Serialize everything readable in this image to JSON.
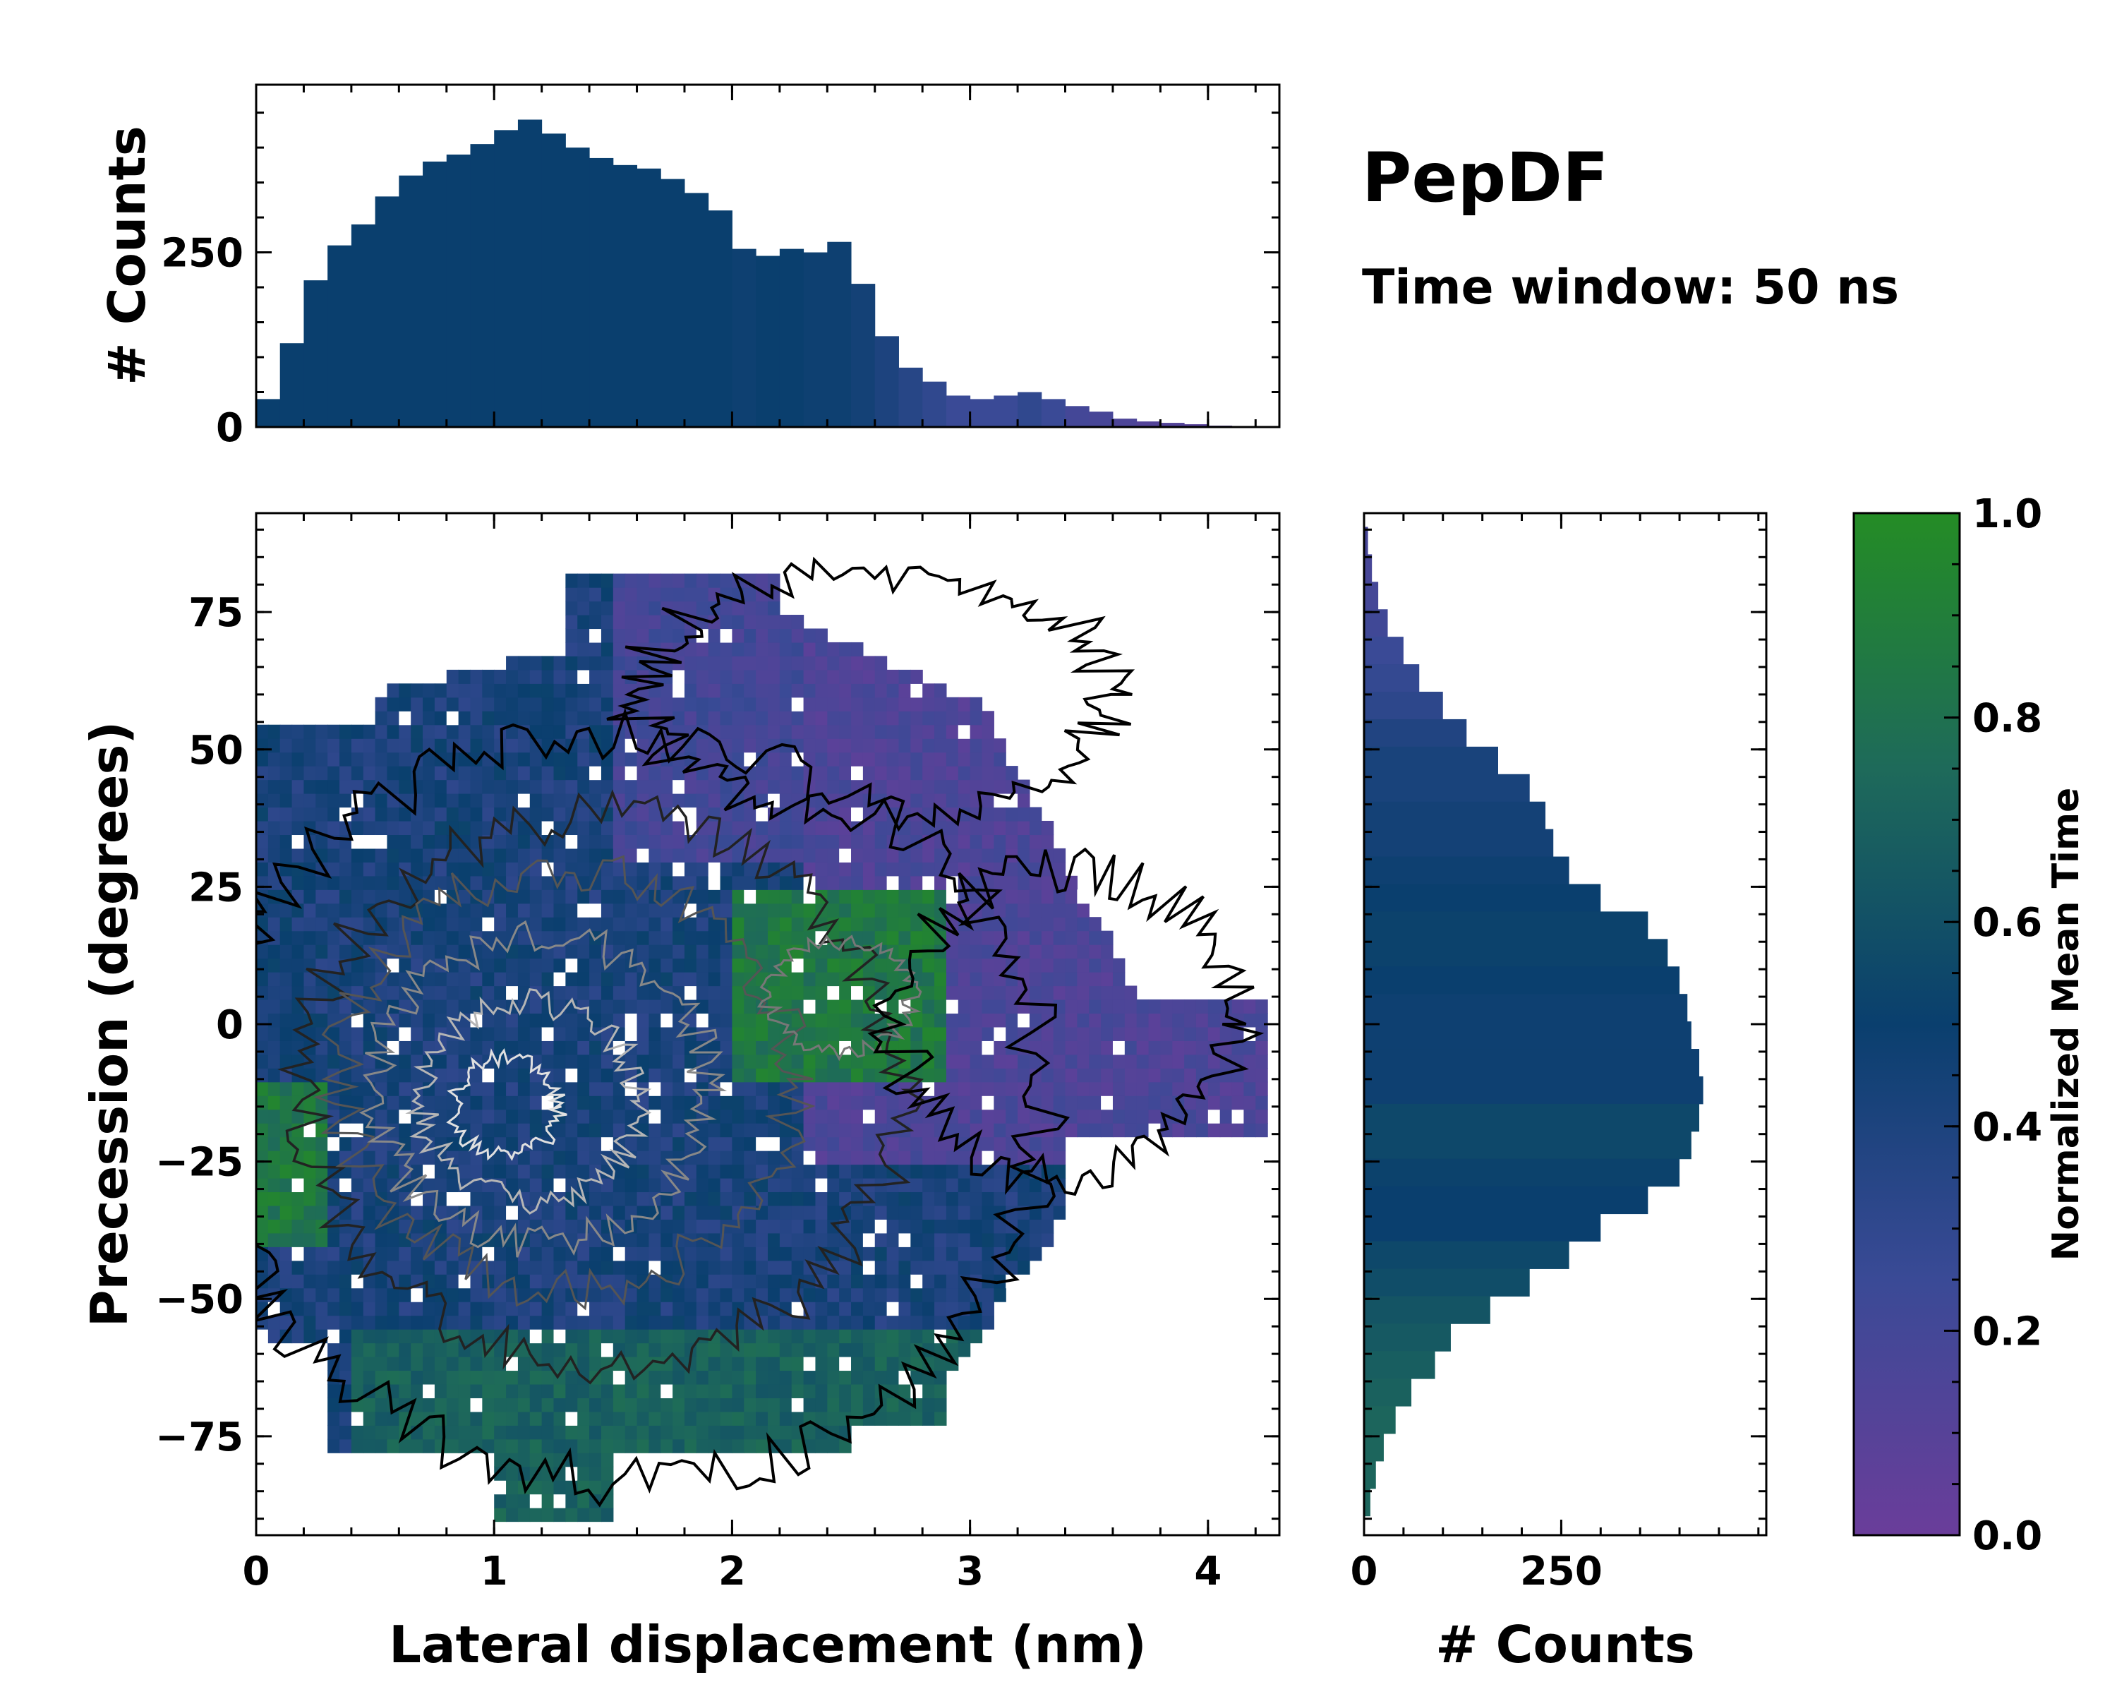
{
  "chart_data": [
    {
      "id": "main-heatmap",
      "type": "heatmap",
      "title": "PepDF",
      "subtitle": "Time window: 50 ns",
      "xlabel": "Lateral displacement (nm)",
      "ylabel": "Precession (degrees)",
      "xlim": [
        0,
        4.3
      ],
      "ylim": [
        -93,
        93
      ],
      "xticks": [
        0,
        1,
        2,
        3,
        4
      ],
      "yticks": [
        75,
        50,
        25,
        0,
        -25,
        -50,
        -75
      ],
      "ytick_labels": [
        "75",
        "50",
        "25",
        "0",
        "−25",
        "−50",
        "−75"
      ],
      "value_label": "Normalized Mean Time",
      "description_regions": [
        {
          "x_range": [
            0,
            2.4
          ],
          "y_range": [
            -90,
            60
          ],
          "dominant_time": 0.45
        },
        {
          "x_range": [
            2.0,
            2.9
          ],
          "y_range": [
            -10,
            25
          ],
          "dominant_time": 0.95
        },
        {
          "x_range": [
            2.2,
            4.3
          ],
          "y_range": [
            -25,
            90
          ],
          "dominant_time": 0.15
        },
        {
          "x_range": [
            0.4,
            3.3
          ],
          "y_range": [
            -92,
            -55
          ],
          "dominant_time": 0.75
        }
      ]
    },
    {
      "id": "top-histogram",
      "type": "bar",
      "ylabel": "# Counts",
      "xlim": [
        0,
        4.3
      ],
      "ylim": [
        0,
        490
      ],
      "yticks": [
        0,
        250
      ],
      "bin_centers": [
        0.05,
        0.15,
        0.25,
        0.35,
        0.45,
        0.55,
        0.65,
        0.75,
        0.85,
        0.95,
        1.05,
        1.15,
        1.25,
        1.35,
        1.45,
        1.55,
        1.65,
        1.75,
        1.85,
        1.95,
        2.05,
        2.15,
        2.25,
        2.35,
        2.45,
        2.55,
        2.65,
        2.75,
        2.85,
        2.95,
        3.05,
        3.15,
        3.25,
        3.35,
        3.45,
        3.55,
        3.65,
        3.75,
        3.85,
        3.95,
        4.05,
        4.15
      ],
      "counts": [
        40,
        120,
        210,
        260,
        290,
        330,
        360,
        380,
        390,
        405,
        425,
        440,
        420,
        400,
        385,
        375,
        370,
        355,
        335,
        310,
        255,
        245,
        255,
        250,
        265,
        205,
        130,
        85,
        65,
        45,
        40,
        45,
        50,
        40,
        30,
        22,
        12,
        8,
        6,
        4,
        2,
        1
      ],
      "value_colors": [
        0.5,
        0.5,
        0.5,
        0.5,
        0.5,
        0.5,
        0.5,
        0.5,
        0.5,
        0.5,
        0.5,
        0.5,
        0.5,
        0.5,
        0.5,
        0.5,
        0.5,
        0.5,
        0.5,
        0.5,
        0.48,
        0.5,
        0.5,
        0.48,
        0.48,
        0.45,
        0.4,
        0.35,
        0.3,
        0.25,
        0.25,
        0.25,
        0.3,
        0.25,
        0.2,
        0.18,
        0.15,
        0.12,
        0.12,
        0.1,
        0.1,
        0.1
      ]
    },
    {
      "id": "right-histogram",
      "type": "bar",
      "orientation": "horizontal",
      "xlabel": "# Counts",
      "xlim": [
        0,
        510
      ],
      "xticks": [
        0,
        250
      ],
      "bin_centers": [
        88,
        83,
        78,
        73,
        68,
        63,
        58,
        53,
        48,
        43,
        38,
        33,
        28,
        23,
        18,
        13,
        8,
        3,
        -2,
        -7,
        -12,
        -17,
        -22,
        -27,
        -32,
        -37,
        -42,
        -47,
        -52,
        -57,
        -62,
        -67,
        -72,
        -77,
        -82,
        -87
      ],
      "counts": [
        5,
        10,
        18,
        30,
        50,
        70,
        100,
        130,
        170,
        210,
        230,
        240,
        260,
        300,
        360,
        385,
        400,
        410,
        415,
        425,
        430,
        425,
        415,
        400,
        360,
        300,
        260,
        210,
        160,
        110,
        90,
        60,
        40,
        25,
        15,
        8
      ],
      "value_colors": [
        0.18,
        0.18,
        0.2,
        0.22,
        0.25,
        0.28,
        0.32,
        0.38,
        0.42,
        0.42,
        0.45,
        0.45,
        0.48,
        0.5,
        0.52,
        0.52,
        0.5,
        0.48,
        0.48,
        0.48,
        0.48,
        0.55,
        0.55,
        0.52,
        0.5,
        0.5,
        0.55,
        0.58,
        0.62,
        0.65,
        0.68,
        0.7,
        0.72,
        0.72,
        0.72,
        0.72
      ]
    },
    {
      "id": "colorbar",
      "type": "colorbar",
      "label": "Normalized Mean Time",
      "range": [
        0,
        1
      ],
      "ticks": [
        0.0,
        0.2,
        0.4,
        0.6,
        0.8,
        1.0
      ],
      "tick_labels": [
        "0.0",
        "0.2",
        "0.4",
        "0.6",
        "0.8",
        "1.0"
      ],
      "colormap_stops": [
        {
          "value": 0.0,
          "color": "#6a3d9a"
        },
        {
          "value": 0.25,
          "color": "#3a4a96"
        },
        {
          "value": 0.5,
          "color": "#0a3f6e"
        },
        {
          "value": 0.75,
          "color": "#1e6a5a"
        },
        {
          "value": 1.0,
          "color": "#248c25"
        }
      ]
    }
  ],
  "labels": {
    "title": "PepDF",
    "subtitle": "Time window: 50 ns",
    "main_xlabel": "Lateral displacement (nm)",
    "main_ylabel": "Precession (degrees)",
    "top_ylabel": "# Counts",
    "right_xlabel": "# Counts",
    "cbar_label": "Normalized Mean Time"
  }
}
